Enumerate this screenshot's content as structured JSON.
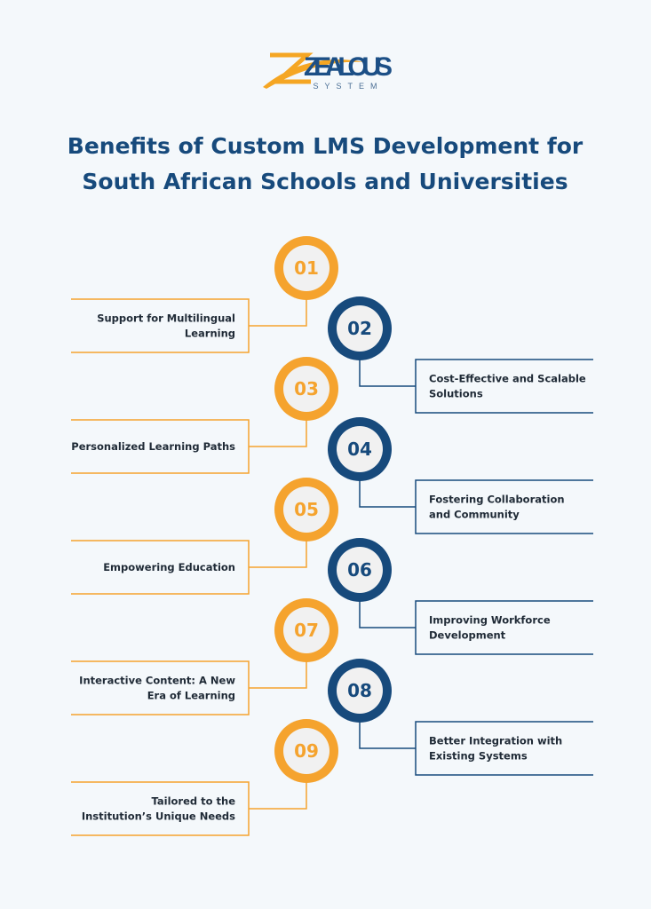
{
  "logo": {
    "name": "ZEALOUS",
    "tagline": "SYSTEM"
  },
  "title": [
    "Benefits of Custom LMS Development for",
    "South African Schools and Universities"
  ],
  "items": [
    {
      "number": "01",
      "lines": [
        "Support for Multilingual",
        "Learning"
      ]
    },
    {
      "number": "02",
      "lines": [
        "Cost-Effective and Scalable",
        "Solutions"
      ]
    },
    {
      "number": "03",
      "lines": [
        "Personalized Learning Paths"
      ]
    },
    {
      "number": "04",
      "lines": [
        "Fostering Collaboration",
        "and Community"
      ]
    },
    {
      "number": "05",
      "lines": [
        "Empowering Education"
      ]
    },
    {
      "number": "06",
      "lines": [
        "Improving Workforce",
        "Development"
      ]
    },
    {
      "number": "07",
      "lines": [
        "Interactive Content: A New",
        "Era of Learning"
      ]
    },
    {
      "number": "08",
      "lines": [
        "Better Integration with",
        "Existing Systems"
      ]
    },
    {
      "number": "09",
      "lines": [
        "Tailored to the",
        "Institution’s Unique Needs"
      ]
    }
  ]
}
